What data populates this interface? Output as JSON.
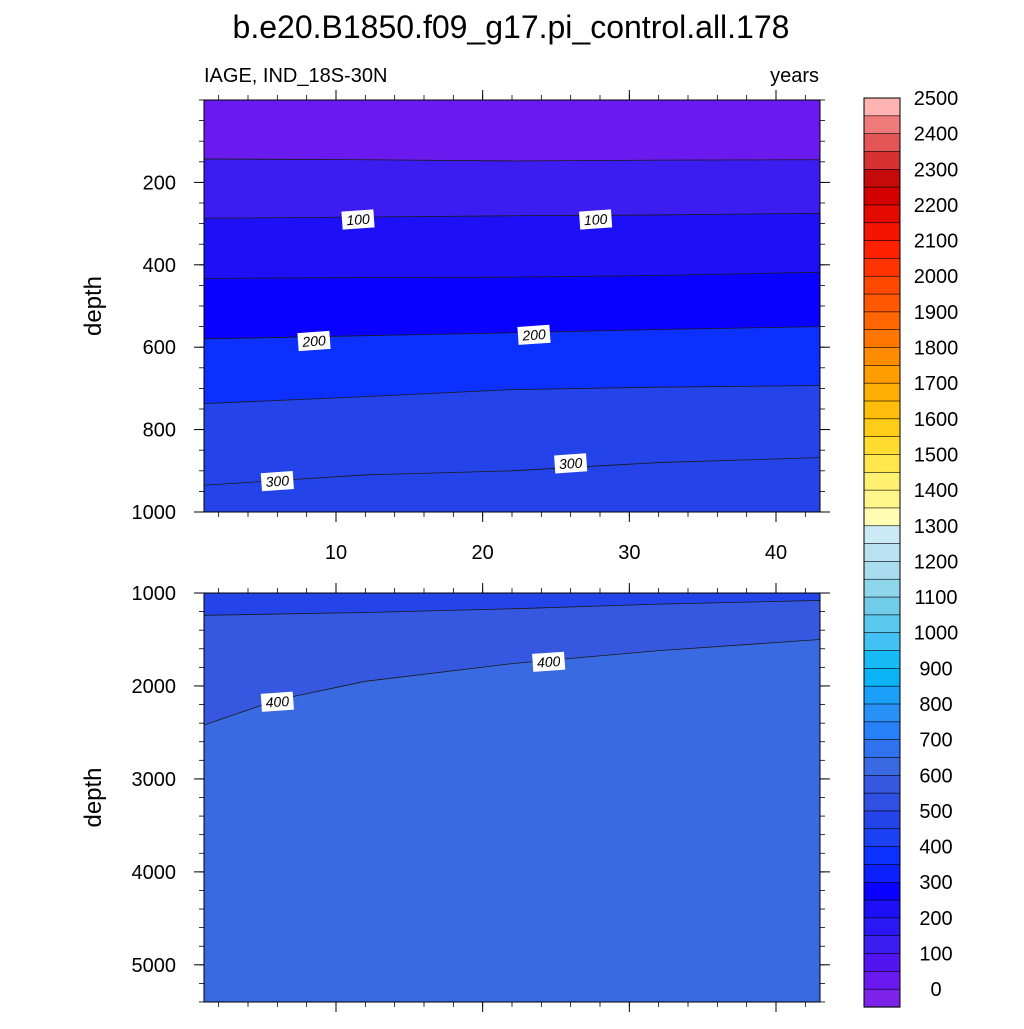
{
  "chart_data": {
    "type": "contour",
    "title": "b.e20.B1850.f09_g17.pi_control.all.178",
    "variable_label": "IAGE, IND_18S-30N",
    "units_label": "years",
    "x_axis": {
      "label": "",
      "range": [
        1,
        43
      ],
      "ticks": [
        10,
        20,
        30,
        40
      ],
      "tick_labels": [
        "10",
        "20",
        "30",
        "40"
      ]
    },
    "panels": [
      {
        "name": "upper",
        "ylabel": "depth",
        "y_range": [
          0,
          1000
        ],
        "y_ticks": [
          200,
          400,
          600,
          800,
          1000
        ],
        "y_tick_labels": [
          "200",
          "400",
          "600",
          "800",
          "1000"
        ],
        "bands": [
          {
            "upper_depth": [
              0,
              0,
              0,
              0,
              0
            ],
            "color": "#6a1aef"
          },
          {
            "upper_depth": [
              143,
              145,
              148,
              146,
              145
            ],
            "color": "#3c1cf1"
          },
          {
            "upper_depth": [
              287,
              284,
              281,
              279,
              275
            ],
            "color": "#1e10f6"
          },
          {
            "upper_depth": [
              433,
              431,
              430,
              426,
              418
            ],
            "color": "#0a00ff"
          },
          {
            "upper_depth": [
              580,
              572,
              565,
              557,
              550
            ],
            "color": "#0c30ff"
          },
          {
            "upper_depth": [
              737,
              720,
              703,
              697,
              693
            ],
            "color": "#2444ea"
          }
        ],
        "contour_lines": [
          {
            "level": 100,
            "x": [
              1,
              12,
              22,
              32,
              43
            ],
            "depth": [
              287,
              284,
              281,
              279,
              275
            ]
          },
          {
            "level": 200,
            "x": [
              1,
              12,
              22,
              32,
              43
            ],
            "depth": [
              580,
              572,
              565,
              557,
              550
            ]
          },
          {
            "level": 300,
            "x": [
              1,
              12,
              22,
              32,
              43
            ],
            "depth": [
              935,
              910,
              900,
              880,
              868
            ]
          }
        ],
        "unlabeled_lines": [
          {
            "x": [
              1,
              12,
              22,
              32,
              43
            ],
            "depth": [
              143,
              145,
              148,
              146,
              145
            ]
          },
          {
            "x": [
              1,
              12,
              22,
              32,
              43
            ],
            "depth": [
              433,
              431,
              430,
              426,
              418
            ]
          },
          {
            "x": [
              1,
              12,
              22,
              32,
              43
            ],
            "depth": [
              737,
              720,
              703,
              697,
              693
            ]
          }
        ],
        "contour_labels": [
          {
            "text": "100",
            "x": 11.5,
            "depth": 290
          },
          {
            "text": "100",
            "x": 27.7,
            "depth": 290
          },
          {
            "text": "200",
            "x": 8.5,
            "depth": 585
          },
          {
            "text": "200",
            "x": 23.5,
            "depth": 570
          },
          {
            "text": "300",
            "x": 6.0,
            "depth": 925
          },
          {
            "text": "300",
            "x": 26.0,
            "depth": 882
          }
        ]
      },
      {
        "name": "lower",
        "ylabel": "depth",
        "y_range": [
          1000,
          5400
        ],
        "y_ticks": [
          1000,
          2000,
          3000,
          4000,
          5000
        ],
        "y_tick_labels": [
          "1000",
          "2000",
          "3000",
          "4000",
          "5000"
        ],
        "contour_lines": [
          {
            "level": 400,
            "x": [
              1,
              6,
              12,
              22,
              32,
              43
            ],
            "depth": [
              2420,
              2150,
              1950,
              1760,
              1620,
              1500
            ]
          }
        ],
        "unlabeled_lines": [
          {
            "x": [
              1,
              12,
              22,
              32,
              43
            ],
            "depth": [
              1240,
              1210,
              1170,
              1120,
              1080
            ]
          }
        ],
        "contour_labels": [
          {
            "text": "400",
            "x": 6.0,
            "depth": 2170
          },
          {
            "text": "400",
            "x": 24.5,
            "depth": 1740
          }
        ],
        "band_colors": [
          "#2444ea",
          "#3658e0",
          "#3a6ae2"
        ]
      }
    ],
    "colorbar": {
      "colors": [
        "#7c22e9",
        "#6a1aef",
        "#5314f2",
        "#3c1cf1",
        "#2a18f4",
        "#1e10f6",
        "#0a00ff",
        "#0c20ff",
        "#0c30ff",
        "#1c40f4",
        "#2444ea",
        "#3050e4",
        "#3658e0",
        "#3a6ae2",
        "#2e72f0",
        "#2880f8",
        "#2890f6",
        "#1aa0f8",
        "#0ab2f6",
        "#16baf4",
        "#42c2f4",
        "#58c8ee",
        "#70cce8",
        "#8ed6ec",
        "#a8dcee",
        "#bae2f2",
        "#cceaf6",
        "#fffcb4",
        "#fff68a",
        "#fff070",
        "#ffe64c",
        "#ffdc30",
        "#ffcc18",
        "#ffbe0c",
        "#ffae04",
        "#ff9c00",
        "#ff8c00",
        "#ff7600",
        "#ff6600",
        "#ff5800",
        "#ff4800",
        "#ff3400",
        "#ff2000",
        "#f41400",
        "#e40a00",
        "#d40000",
        "#c40a0a",
        "#d63232",
        "#e45656",
        "#ef7a7a",
        "#ffb4b4"
      ],
      "tick_labels": [
        "0",
        "100",
        "200",
        "300",
        "400",
        "500",
        "600",
        "700",
        "800",
        "900",
        "1000",
        "1100",
        "1200",
        "1300",
        "1400",
        "1500",
        "1600",
        "1700",
        "1800",
        "1900",
        "2000",
        "2100",
        "2200",
        "2300",
        "2400",
        "2500"
      ]
    }
  }
}
